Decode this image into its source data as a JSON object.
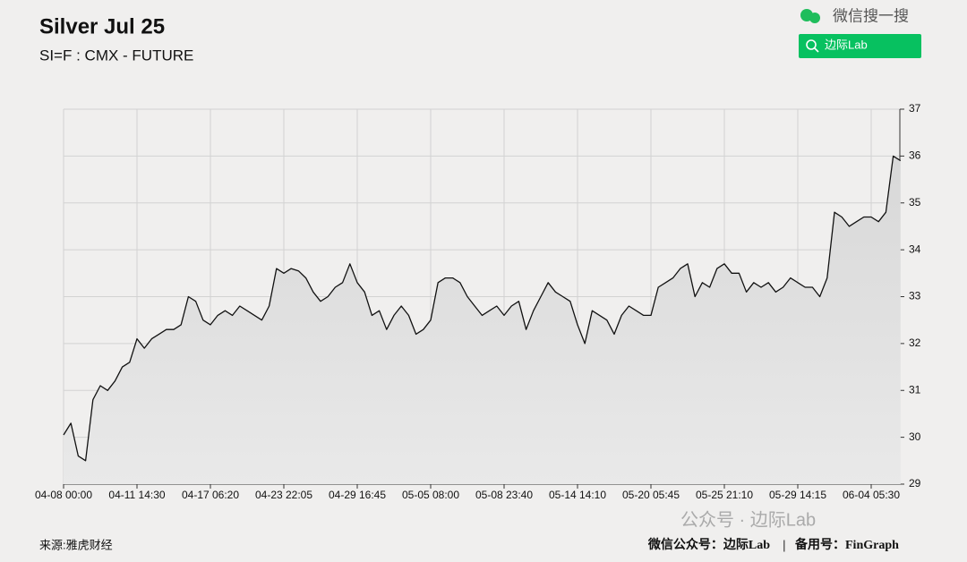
{
  "chart_data": {
    "type": "line",
    "title": "Silver Jul 25",
    "subtitle": "SI=F : CMX - FUTURE",
    "categories": [
      "04-08 00:00",
      null,
      null,
      null,
      null,
      null,
      null,
      null,
      null,
      null,
      "04-11 14:30",
      null,
      null,
      null,
      null,
      null,
      null,
      null,
      null,
      null,
      "04-17 06:20",
      null,
      null,
      null,
      null,
      null,
      null,
      null,
      null,
      null,
      "04-23 22:05",
      null,
      null,
      null,
      null,
      null,
      null,
      null,
      null,
      null,
      "04-29 16:45",
      null,
      null,
      null,
      null,
      null,
      null,
      null,
      null,
      null,
      "05-05 08:00",
      null,
      null,
      null,
      null,
      null,
      null,
      null,
      null,
      null,
      "05-08 23:40",
      null,
      null,
      null,
      null,
      null,
      null,
      null,
      null,
      null,
      "05-14 14:10",
      null,
      null,
      null,
      null,
      null,
      null,
      null,
      null,
      null,
      "05-20 05:45",
      null,
      null,
      null,
      null,
      null,
      null,
      null,
      null,
      null,
      "05-25 21:10",
      null,
      null,
      null,
      null,
      null,
      null,
      null,
      null,
      null,
      "05-29 14:15",
      null,
      null,
      null,
      null,
      null,
      null,
      null,
      null,
      null,
      "06-04 05:30",
      null,
      null,
      null,
      null
    ],
    "values": [
      30.05,
      30.3,
      29.6,
      29.5,
      30.8,
      31.1,
      31.0,
      31.2,
      31.5,
      31.6,
      32.1,
      31.9,
      32.1,
      32.2,
      32.3,
      32.3,
      32.4,
      33.0,
      32.9,
      32.5,
      32.4,
      32.6,
      32.7,
      32.6,
      32.8,
      32.7,
      32.6,
      32.5,
      32.8,
      33.6,
      33.5,
      33.6,
      33.55,
      33.4,
      33.1,
      32.9,
      33.0,
      33.2,
      33.3,
      33.7,
      33.3,
      33.1,
      32.6,
      32.7,
      32.3,
      32.6,
      32.8,
      32.6,
      32.2,
      32.3,
      32.5,
      33.3,
      33.4,
      33.4,
      33.3,
      33.0,
      32.8,
      32.6,
      32.7,
      32.8,
      32.6,
      32.8,
      32.9,
      32.3,
      32.7,
      33.0,
      33.3,
      33.1,
      33.0,
      32.9,
      32.4,
      32.0,
      32.7,
      32.6,
      32.5,
      32.2,
      32.6,
      32.8,
      32.7,
      32.6,
      32.6,
      33.2,
      33.3,
      33.4,
      33.6,
      33.7,
      33.0,
      33.3,
      33.2,
      33.6,
      33.7,
      33.5,
      33.5,
      33.1,
      33.3,
      33.2,
      33.3,
      33.1,
      33.2,
      33.4,
      33.3,
      33.2,
      33.2,
      33.0,
      33.4,
      34.8,
      34.7,
      34.5,
      34.6,
      34.7,
      34.7,
      34.6,
      34.8,
      36.0,
      35.9
    ],
    "color": "#111111",
    "area_color": "#dedede",
    "ylim": [
      29,
      37
    ],
    "yticks": [
      29,
      30,
      31,
      32,
      33,
      34,
      35,
      36,
      37
    ],
    "grid": true,
    "source": "来源:雅虎财经"
  },
  "search_brand": "微信搜一搜",
  "search_button": "边际Lab",
  "watermark": "公众号 · 边际Lab",
  "footer_account": "微信公众号：边际Lab",
  "footer_backup": "备用号：FinGraph"
}
